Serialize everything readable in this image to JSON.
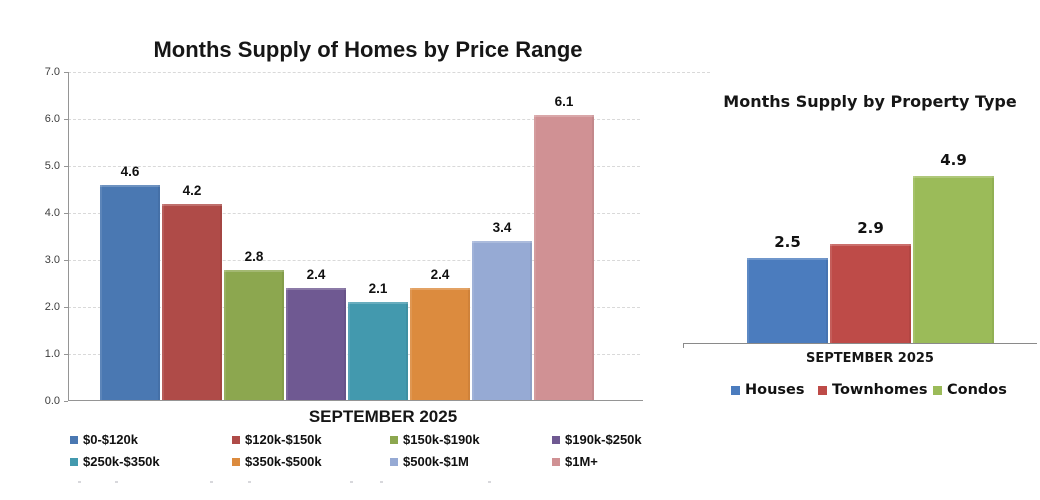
{
  "chart_data": [
    {
      "type": "bar",
      "title": "Months Supply of Homes by Price Range",
      "xlabel": "SEPTEMBER 2025",
      "ylabel": "",
      "ylim": [
        0,
        7
      ],
      "grid": true,
      "legend_position": "bottom",
      "y_ticks": [
        {
          "value": 0,
          "label": "0.0"
        },
        {
          "value": 1,
          "label": "1.0"
        },
        {
          "value": 2,
          "label": "2.0"
        },
        {
          "value": 3,
          "label": "3.0"
        },
        {
          "value": 4,
          "label": "4.0"
        },
        {
          "value": 5,
          "label": "5.0"
        },
        {
          "value": 6,
          "label": "6.0"
        },
        {
          "value": 7,
          "label": "7.0"
        }
      ],
      "series": [
        {
          "name": "$0-$120k",
          "value": 4.6,
          "color": "#4A78B2"
        },
        {
          "name": "$120k-$150k",
          "value": 4.2,
          "color": "#AF4B48"
        },
        {
          "name": "$150k-$190k",
          "value": 2.8,
          "color": "#8CA74F"
        },
        {
          "name": "$190k-$250k",
          "value": 2.4,
          "color": "#6F5992"
        },
        {
          "name": "$250k-$350k",
          "value": 2.1,
          "color": "#4399AE"
        },
        {
          "name": "$350k-$500k",
          "value": 2.4,
          "color": "#DC8B3E"
        },
        {
          "name": "$500k-$1M",
          "value": 3.4,
          "color": "#96AAD4"
        },
        {
          "name": "$1M+",
          "value": 6.1,
          "color": "#D09194"
        }
      ]
    },
    {
      "type": "bar",
      "title": "Months Supply by Property Type",
      "xlabel": "SEPTEMBER 2025",
      "ylabel": "",
      "grid": false,
      "legend_position": "bottom",
      "series": [
        {
          "name": "Houses",
          "value": 2.5,
          "color": "#4B7CBE"
        },
        {
          "name": "Townhomes",
          "value": 2.9,
          "color": "#BE4B48"
        },
        {
          "name": "Condos",
          "value": 4.9,
          "color": "#9BBB59"
        }
      ]
    }
  ]
}
